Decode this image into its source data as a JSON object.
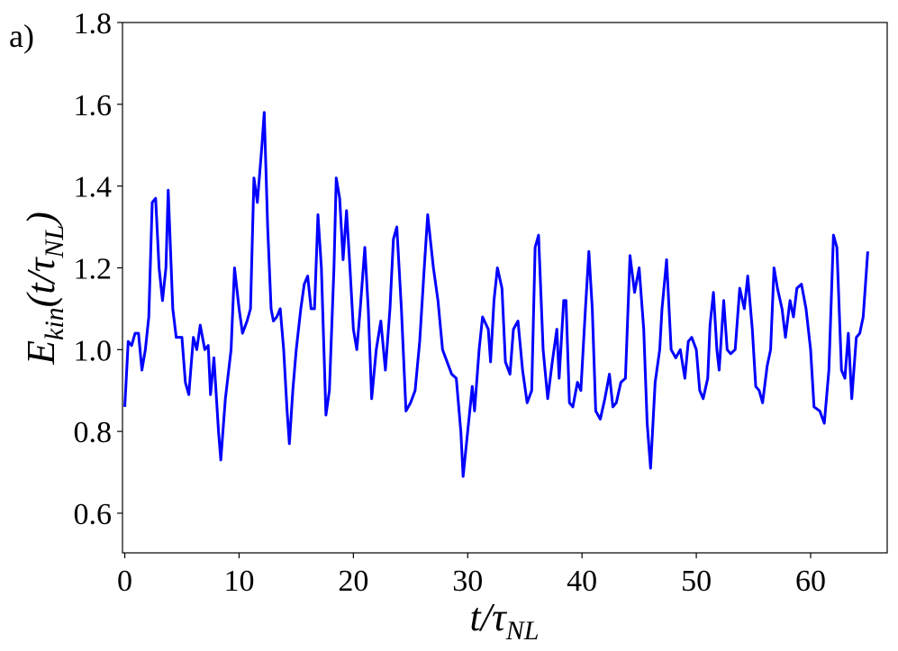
{
  "chart_data": {
    "type": "line",
    "annotation": "a)",
    "x_label": [
      "t/τ",
      "NL"
    ],
    "y_label": [
      "E",
      "kin",
      "(t/τ",
      "NL",
      ")"
    ],
    "xlim": [
      -0.2,
      66.7
    ],
    "ylim": [
      0.503,
      1.8
    ],
    "xticks": [
      0,
      10,
      20,
      30,
      40,
      50,
      60
    ],
    "yticks": [
      0.6,
      0.8,
      {
        "value": 1,
        "label": "1.0"
      },
      1.2,
      1.4,
      1.6,
      1.8
    ],
    "grid": false,
    "x": [
      0,
      0.3,
      0.6,
      0.9,
      1.2,
      1.5,
      1.8,
      2.1,
      2.4,
      2.7,
      3.0,
      3.3,
      3.6,
      3.8,
      4.2,
      4.5,
      5.0,
      5.3,
      5.6,
      6.0,
      6.3,
      6.6,
      7.0,
      7.3,
      7.5,
      7.8,
      8.2,
      8.4,
      8.8,
      9.3,
      9.6,
      10.0,
      10.3,
      10.7,
      11.0,
      11.3,
      11.6,
      12.0,
      12.2,
      12.5,
      12.8,
      13.0,
      13.3,
      13.6,
      13.9,
      14.2,
      14.4,
      14.7,
      15.0,
      15.4,
      15.7,
      16.0,
      16.3,
      16.6,
      16.9,
      17.2,
      17.6,
      17.9,
      18.3,
      18.5,
      18.8,
      19.1,
      19.4,
      19.7,
      20.0,
      20.3,
      20.6,
      21.0,
      21.3,
      21.6,
      22.0,
      22.4,
      22.8,
      23.2,
      23.5,
      23.8,
      24.2,
      24.6,
      25.0,
      25.4,
      25.8,
      26.2,
      26.5,
      27.0,
      27.4,
      27.8,
      28.2,
      28.6,
      29.0,
      29.4,
      29.6,
      30.0,
      30.4,
      30.6,
      31.0,
      31.3,
      31.8,
      32.0,
      32.3,
      32.6,
      33.0,
      33.3,
      33.7,
      34.0,
      34.4,
      34.8,
      35.2,
      35.6,
      35.9,
      36.2,
      36.6,
      37.0,
      37.4,
      37.8,
      38.0,
      38.4,
      38.6,
      38.9,
      39.2,
      39.6,
      39.9,
      40.3,
      40.6,
      40.9,
      41.2,
      41.6,
      42.0,
      42.4,
      42.7,
      43.0,
      43.4,
      43.8,
      44.2,
      44.6,
      45.0,
      45.4,
      45.7,
      46.0,
      46.4,
      46.8,
      47.0,
      47.4,
      47.8,
      48.2,
      48.6,
      49.0,
      49.3,
      49.6,
      50.0,
      50.3,
      50.6,
      51.0,
      51.2,
      51.5,
      51.8,
      52.0,
      52.4,
      52.7,
      53.0,
      53.4,
      53.8,
      54.2,
      54.5,
      54.9,
      55.2,
      55.5,
      55.8,
      56.2,
      56.5,
      56.8,
      57.1,
      57.5,
      57.8,
      58.2,
      58.5,
      58.8,
      59.2,
      59.6,
      60.0,
      60.3,
      60.8,
      61.2,
      61.6,
      62.0,
      62.3,
      62.7,
      63.0,
      63.3,
      63.6,
      64.0,
      64.3,
      64.6,
      65.0
    ],
    "series": [
      {
        "color": "#0000ff",
        "values": [
          0.86,
          1.02,
          1.01,
          1.04,
          1.04,
          0.95,
          1.0,
          1.08,
          1.36,
          1.37,
          1.2,
          1.12,
          1.2,
          1.39,
          1.1,
          1.03,
          1.03,
          0.92,
          0.89,
          1.03,
          1.0,
          1.06,
          1.0,
          1.01,
          0.89,
          0.98,
          0.8,
          0.73,
          0.88,
          1.0,
          1.2,
          1.1,
          1.04,
          1.07,
          1.1,
          1.42,
          1.36,
          1.5,
          1.58,
          1.3,
          1.1,
          1.07,
          1.08,
          1.1,
          1.0,
          0.85,
          0.77,
          0.9,
          1.0,
          1.1,
          1.16,
          1.18,
          1.1,
          1.1,
          1.33,
          1.2,
          0.84,
          0.9,
          1.2,
          1.42,
          1.37,
          1.22,
          1.34,
          1.2,
          1.05,
          1.0,
          1.1,
          1.25,
          1.1,
          0.88,
          1.0,
          1.07,
          0.95,
          1.1,
          1.27,
          1.3,
          1.1,
          0.85,
          0.87,
          0.9,
          1.02,
          1.2,
          1.33,
          1.2,
          1.12,
          1.0,
          0.97,
          0.94,
          0.93,
          0.8,
          0.69,
          0.8,
          0.91,
          0.85,
          1.0,
          1.08,
          1.05,
          0.97,
          1.12,
          1.2,
          1.15,
          0.97,
          0.94,
          1.05,
          1.07,
          0.95,
          0.87,
          0.9,
          1.25,
          1.28,
          1.0,
          0.88,
          0.97,
          1.05,
          0.93,
          1.12,
          1.12,
          0.87,
          0.86,
          0.92,
          0.9,
          1.1,
          1.24,
          1.1,
          0.85,
          0.83,
          0.88,
          0.94,
          0.86,
          0.87,
          0.92,
          0.93,
          1.23,
          1.14,
          1.2,
          1.05,
          0.82,
          0.71,
          0.92,
          1.0,
          1.1,
          1.22,
          1.0,
          0.98,
          1.0,
          0.93,
          1.02,
          1.03,
          1.0,
          0.9,
          0.88,
          0.93,
          1.06,
          1.14,
          1.0,
          0.95,
          1.12,
          1.0,
          0.99,
          1.0,
          1.15,
          1.1,
          1.18,
          1.05,
          0.91,
          0.9,
          0.87,
          0.96,
          1.0,
          1.2,
          1.15,
          1.1,
          1.03,
          1.12,
          1.08,
          1.15,
          1.16,
          1.1,
          1.0,
          0.86,
          0.85,
          0.82,
          0.95,
          1.28,
          1.25,
          0.95,
          0.93,
          1.04,
          0.88,
          1.03,
          1.04,
          1.08,
          1.24
        ]
      }
    ]
  }
}
